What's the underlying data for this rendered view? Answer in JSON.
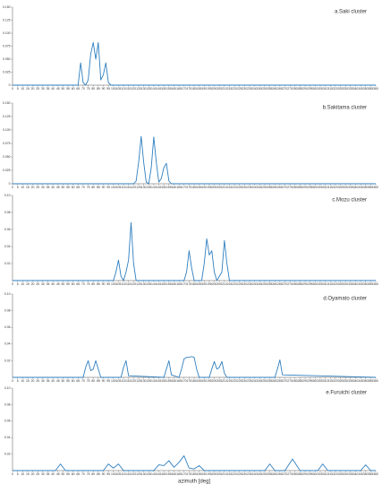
{
  "chart_data": [
    {
      "type": "line",
      "title": "a.Saki cluster",
      "x": [
        0,
        65,
        67.5,
        70,
        72.5,
        75,
        77.5,
        80,
        82.5,
        85,
        87.5,
        90,
        92.5,
        95,
        97.5,
        360
      ],
      "series": [
        {
          "color": "#2f7fbf",
          "values": [
            0,
            0,
            0.043,
            0.005,
            0,
            0.01,
            0.06,
            0.082,
            0.05,
            0.082,
            0.01,
            0.02,
            0.043,
            0.005,
            0,
            0
          ]
        }
      ],
      "xlim": [
        0,
        360
      ],
      "ylim": [
        0,
        0.15
      ],
      "xticks": [
        0,
        5,
        10,
        15,
        20,
        25,
        30,
        35,
        40,
        45,
        50,
        55,
        60,
        65,
        70,
        75,
        80,
        85,
        90,
        95,
        100,
        105,
        110,
        115,
        120,
        125,
        130,
        135,
        140,
        145,
        150,
        155,
        160,
        165,
        170,
        175,
        180,
        185,
        190,
        195,
        200,
        205,
        210,
        215,
        220,
        225,
        230,
        235,
        240,
        245,
        250,
        255,
        260,
        265,
        270,
        275,
        280,
        285,
        290,
        295,
        300,
        305,
        310,
        315,
        320,
        325,
        330,
        335,
        340,
        345,
        350,
        355,
        360
      ],
      "yticks": [
        0,
        0.025,
        {
          "value": 0.05,
          "label": "0.050"
        },
        0.075,
        {
          "value": 0.1,
          "label": "0.100"
        },
        0.125,
        {
          "value": 0.15,
          "label": "0.150"
        }
      ]
    },
    {
      "type": "line",
      "title": "b.Sakitama cluster",
      "x": [
        0,
        120,
        122.5,
        125,
        127.5,
        130,
        132.5,
        135,
        137.5,
        140,
        142.5,
        145,
        147.5,
        150,
        152.5,
        155,
        157.5,
        360
      ],
      "series": [
        {
          "color": "#2f7fbf",
          "values": [
            0,
            0,
            0.005,
            0.04,
            0.088,
            0.04,
            0.003,
            0,
            0.03,
            0.087,
            0.04,
            0.003,
            0.01,
            0.03,
            0.038,
            0.005,
            0,
            0
          ]
        }
      ],
      "xlim": [
        0,
        360
      ],
      "ylim": [
        0,
        0.15
      ],
      "xticks": [
        0,
        5,
        10,
        15,
        20,
        25,
        30,
        35,
        40,
        45,
        50,
        55,
        60,
        65,
        70,
        75,
        80,
        85,
        90,
        95,
        100,
        105,
        110,
        115,
        120,
        125,
        130,
        135,
        140,
        145,
        150,
        155,
        160,
        165,
        170,
        175,
        180,
        185,
        190,
        195,
        200,
        205,
        210,
        215,
        220,
        225,
        230,
        235,
        240,
        245,
        250,
        255,
        260,
        265,
        270,
        275,
        280,
        285,
        290,
        295,
        300,
        305,
        310,
        315,
        320,
        325,
        330,
        335,
        340,
        345,
        350,
        355,
        360
      ],
      "yticks": [
        0,
        0.025,
        {
          "value": 0.05,
          "label": "0.050"
        },
        0.075,
        {
          "value": 0.1,
          "label": "0.100"
        },
        0.125,
        {
          "value": 0.15,
          "label": "0.150"
        }
      ]
    },
    {
      "type": "line",
      "title": "c.Mozu cluster",
      "x": [
        0,
        100,
        102.5,
        105,
        107.5,
        110,
        112.5,
        115,
        117.5,
        120,
        122.5,
        170,
        172.5,
        175,
        177.5,
        180,
        187.5,
        190,
        192.5,
        195,
        197.5,
        200,
        202.5,
        207.5,
        210,
        212.5,
        215,
        360
      ],
      "series": [
        {
          "color": "#2f7fbf",
          "values": [
            0,
            0,
            0.01,
            0.024,
            0.005,
            0,
            0.01,
            0.024,
            0.068,
            0.02,
            0,
            0,
            0.01,
            0.035,
            0.015,
            0,
            0,
            0.02,
            0.049,
            0.03,
            0.035,
            0.01,
            0,
            0.01,
            0.047,
            0.02,
            0,
            0
          ]
        }
      ],
      "xlim": [
        0,
        360
      ],
      "ylim": [
        0,
        0.1
      ],
      "xticks": [
        0,
        5,
        10,
        15,
        20,
        25,
        30,
        35,
        40,
        45,
        50,
        55,
        60,
        65,
        70,
        75,
        80,
        85,
        90,
        95,
        100,
        105,
        110,
        115,
        120,
        125,
        130,
        135,
        140,
        145,
        150,
        155,
        160,
        165,
        170,
        175,
        180,
        185,
        190,
        195,
        200,
        205,
        210,
        215,
        220,
        225,
        230,
        235,
        240,
        245,
        250,
        255,
        260,
        265,
        270,
        275,
        280,
        285,
        290,
        295,
        300,
        305,
        310,
        315,
        320,
        325,
        330,
        335,
        340,
        345,
        350,
        355,
        360
      ],
      "yticks": [
        0.02,
        0.04,
        0.06,
        0.08,
        {
          "value": 0.1,
          "label": "0.10"
        }
      ]
    },
    {
      "type": "line",
      "title": "d.Oyamato cluster",
      "x": [
        0,
        70,
        72.5,
        75,
        77.5,
        80,
        82.5,
        85,
        87.5,
        107.5,
        110,
        112.5,
        115,
        150,
        152.5,
        155,
        157.5,
        165,
        167.5,
        170,
        172.5,
        175,
        177.5,
        180,
        182.5,
        185,
        195,
        197.5,
        200,
        202.5,
        205,
        207.5,
        210,
        212.5,
        260,
        262.5,
        265,
        267.5,
        360
      ],
      "series": [
        {
          "color": "#2f7fbf",
          "values": [
            0,
            0,
            0.012,
            0.02,
            0.008,
            0.01,
            0.02,
            0.01,
            0,
            0,
            0.012,
            0.02,
            0.002,
            0,
            0.01,
            0.02,
            0.003,
            0,
            0.01,
            0.022,
            0.024,
            0.024,
            0.025,
            0.024,
            0.01,
            0,
            0,
            0.01,
            0.019,
            0.01,
            0.012,
            0.019,
            0.005,
            0,
            0,
            0.01,
            0.021,
            0.003,
            0
          ]
        }
      ],
      "xlim": [
        0,
        360
      ],
      "ylim": [
        0,
        0.1
      ],
      "xticks": [
        0,
        5,
        10,
        15,
        20,
        25,
        30,
        35,
        40,
        45,
        50,
        55,
        60,
        65,
        70,
        75,
        80,
        85,
        90,
        95,
        100,
        105,
        110,
        115,
        120,
        125,
        130,
        135,
        140,
        145,
        150,
        155,
        160,
        165,
        170,
        175,
        180,
        185,
        190,
        195,
        200,
        205,
        210,
        215,
        220,
        225,
        230,
        235,
        240,
        245,
        250,
        255,
        260,
        265,
        270,
        275,
        280,
        285,
        290,
        295,
        300,
        305,
        310,
        315,
        320,
        325,
        330,
        335,
        340,
        345,
        350,
        355,
        360
      ],
      "yticks": [
        0.02,
        0.04,
        0.06,
        0.08,
        {
          "value": 0.1,
          "label": "0.10"
        }
      ]
    },
    {
      "type": "line",
      "title": "e.Furuichi cluster",
      "xlabel": "azimuth [deg]",
      "x": [
        0,
        42.5,
        47.5,
        52.5,
        90,
        95,
        100,
        105,
        110,
        140,
        145,
        150,
        155,
        160,
        165,
        170,
        175,
        180,
        185,
        190,
        250,
        255,
        260,
        270,
        277.5,
        285,
        302.5,
        307.5,
        312.5,
        345,
        350,
        355,
        360
      ],
      "series": [
        {
          "color": "#2f7fbf",
          "values": [
            0,
            0,
            0.008,
            0,
            0,
            0.008,
            0.003,
            0.008,
            0,
            0,
            0.007,
            0.006,
            0.012,
            0.004,
            0.01,
            0.018,
            0.003,
            0.002,
            0.006,
            0,
            0,
            0.008,
            0,
            0,
            0.014,
            0,
            0,
            0.008,
            0,
            0,
            0.007,
            0,
            0
          ]
        }
      ],
      "xlim": [
        0,
        360
      ],
      "ylim": [
        0,
        0.1
      ],
      "xticks": [
        0,
        5,
        10,
        15,
        20,
        25,
        30,
        35,
        40,
        45,
        50,
        55,
        60,
        65,
        70,
        75,
        80,
        85,
        90,
        95,
        100,
        105,
        110,
        115,
        120,
        125,
        130,
        135,
        140,
        145,
        150,
        155,
        160,
        165,
        170,
        175,
        180,
        185,
        190,
        195,
        200,
        205,
        210,
        215,
        220,
        225,
        230,
        235,
        240,
        245,
        250,
        255,
        260,
        265,
        270,
        275,
        280,
        285,
        290,
        295,
        300,
        305,
        310,
        315,
        320,
        325,
        330,
        335,
        340,
        345,
        350,
        355,
        360
      ],
      "yticks": [
        0.02,
        0.04,
        0.06,
        0.08,
        {
          "value": 0.1,
          "label": "0.10"
        }
      ]
    }
  ]
}
